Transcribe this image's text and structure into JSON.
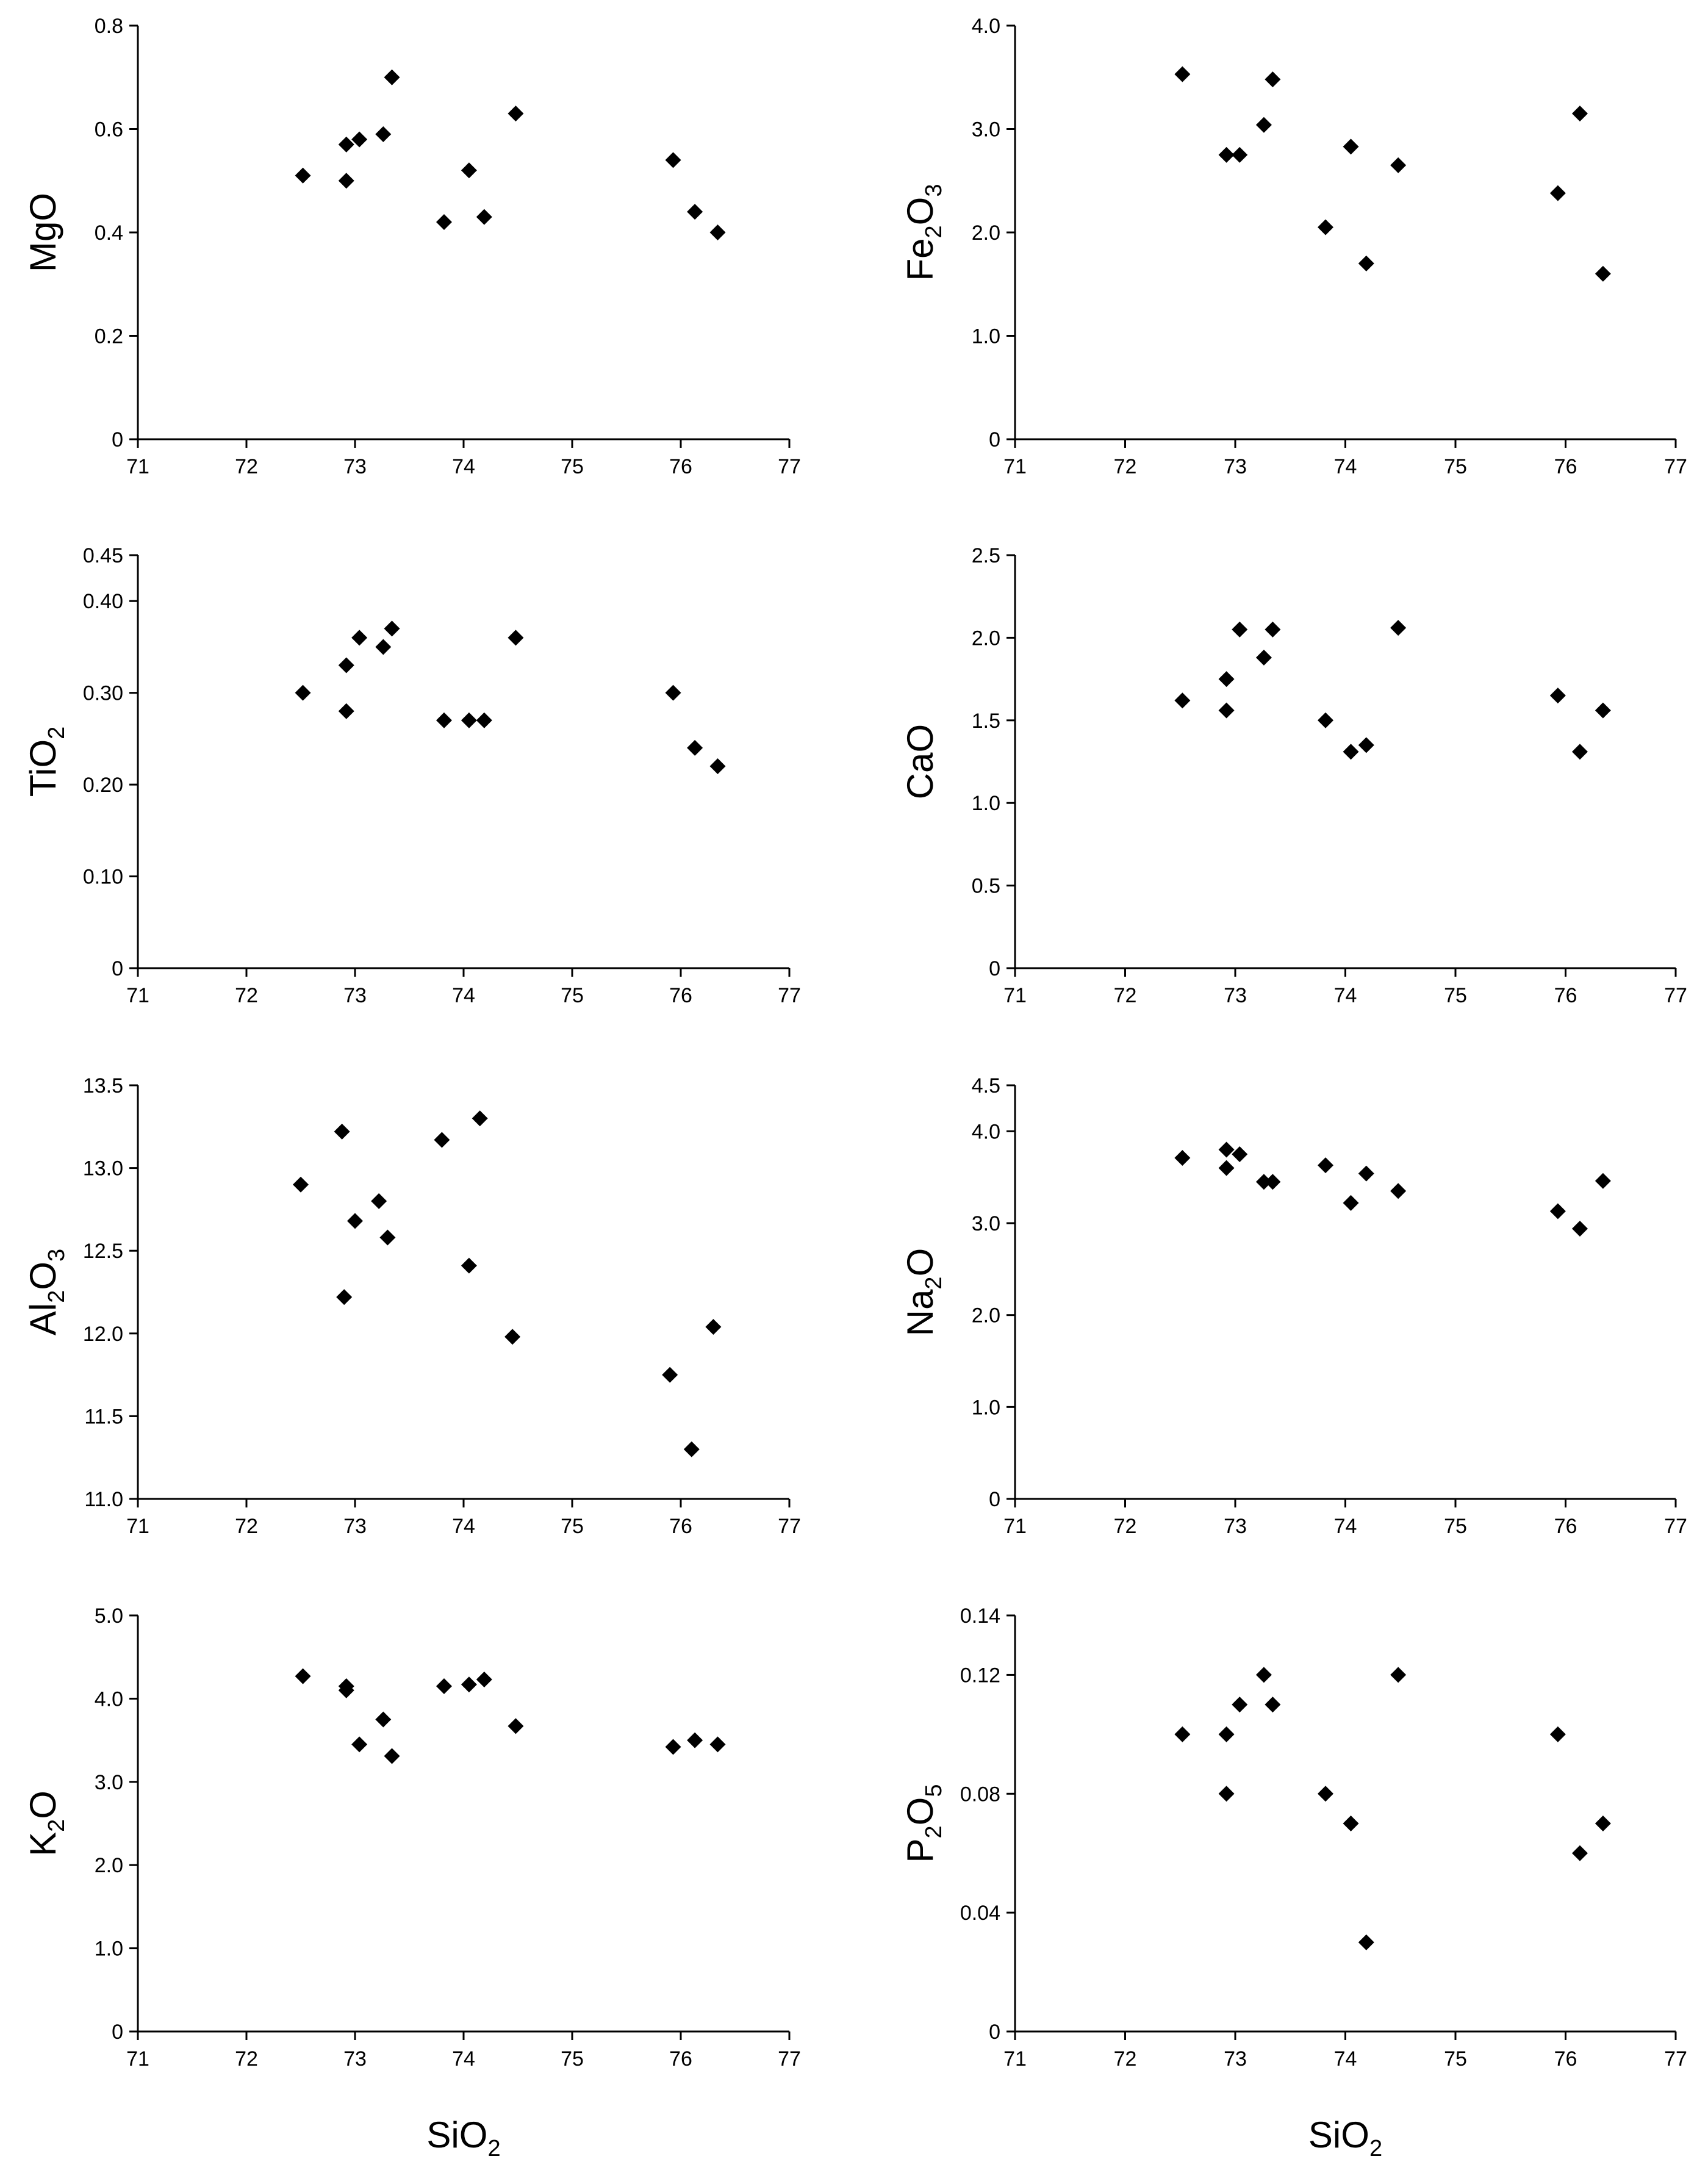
{
  "chart_data": [
    {
      "type": "scatter",
      "ylabel": {
        "parts": [
          {
            "t": "MgO"
          }
        ]
      },
      "xlim": [
        71,
        77
      ],
      "xticks": [
        "71",
        "72",
        "73",
        "74",
        "75",
        "76",
        "77"
      ],
      "ylim": [
        0,
        0.8
      ],
      "yticks": [
        {
          "v": 0,
          "l": "0"
        },
        {
          "v": 0.2,
          "l": "0.2"
        },
        {
          "v": 0.4,
          "l": "0.4"
        },
        {
          "v": 0.6,
          "l": "0.6"
        },
        {
          "v": 0.8,
          "l": "0.8"
        }
      ],
      "points": [
        [
          72.52,
          0.51
        ],
        [
          72.92,
          0.57
        ],
        [
          72.92,
          0.5
        ],
        [
          73.04,
          0.58
        ],
        [
          73.26,
          0.59
        ],
        [
          73.34,
          0.7
        ],
        [
          73.82,
          0.42
        ],
        [
          74.05,
          0.52
        ],
        [
          74.19,
          0.43
        ],
        [
          74.48,
          0.63
        ],
        [
          75.93,
          0.54
        ],
        [
          76.13,
          0.44
        ],
        [
          76.34,
          0.4
        ]
      ]
    },
    {
      "type": "scatter",
      "ylabel": {
        "parts": [
          {
            "t": "Fe"
          },
          {
            "t": "2",
            "sub": true
          },
          {
            "t": "O"
          },
          {
            "t": "3",
            "sub": true
          }
        ]
      },
      "xlim": [
        71,
        77
      ],
      "xticks": [
        "71",
        "72",
        "73",
        "74",
        "75",
        "76",
        "77"
      ],
      "ylim": [
        0,
        4.0
      ],
      "yticks": [
        {
          "v": 0,
          "l": "0"
        },
        {
          "v": 1,
          "l": "1.0"
        },
        {
          "v": 2,
          "l": "2.0"
        },
        {
          "v": 3,
          "l": "3.0"
        },
        {
          "v": 4,
          "l": "4.0"
        }
      ],
      "points": [
        [
          72.52,
          3.53
        ],
        [
          72.92,
          2.75
        ],
        [
          73.04,
          2.75
        ],
        [
          73.26,
          3.04
        ],
        [
          73.34,
          3.48
        ],
        [
          73.82,
          2.05
        ],
        [
          74.05,
          2.83
        ],
        [
          74.19,
          1.7
        ],
        [
          74.48,
          2.65
        ],
        [
          75.93,
          2.38
        ],
        [
          76.13,
          3.15
        ],
        [
          76.34,
          1.6
        ]
      ]
    },
    {
      "type": "scatter",
      "ylabel": {
        "parts": [
          {
            "t": "TiO"
          },
          {
            "t": "2",
            "sub": true
          }
        ]
      },
      "xlim": [
        71,
        77
      ],
      "xticks": [
        "71",
        "72",
        "73",
        "74",
        "75",
        "76",
        "77"
      ],
      "ylim": [
        0,
        0.45
      ],
      "yticks": [
        {
          "v": 0,
          "l": "0"
        },
        {
          "v": 0.1,
          "l": "0.10"
        },
        {
          "v": 0.2,
          "l": "0.20"
        },
        {
          "v": 0.3,
          "l": "0.30"
        },
        {
          "v": 0.4,
          "l": "0.40"
        },
        {
          "v": 0.45,
          "l": "0.45"
        }
      ],
      "points": [
        [
          72.52,
          0.3
        ],
        [
          72.92,
          0.33
        ],
        [
          72.92,
          0.28
        ],
        [
          73.04,
          0.36
        ],
        [
          73.26,
          0.35
        ],
        [
          73.34,
          0.37
        ],
        [
          73.82,
          0.27
        ],
        [
          74.05,
          0.27
        ],
        [
          74.19,
          0.27
        ],
        [
          74.48,
          0.36
        ],
        [
          75.93,
          0.3
        ],
        [
          76.13,
          0.24
        ],
        [
          76.34,
          0.22
        ]
      ]
    },
    {
      "type": "scatter",
      "ylabel": {
        "parts": [
          {
            "t": "CaO"
          }
        ]
      },
      "xlim": [
        71,
        77
      ],
      "xticks": [
        "71",
        "72",
        "73",
        "74",
        "75",
        "76",
        "77"
      ],
      "ylim": [
        0,
        2.5
      ],
      "yticks": [
        {
          "v": 0,
          "l": "0"
        },
        {
          "v": 0.5,
          "l": "0.5"
        },
        {
          "v": 1.0,
          "l": "1.0"
        },
        {
          "v": 1.5,
          "l": "1.5"
        },
        {
          "v": 2.0,
          "l": "2.0"
        },
        {
          "v": 2.5,
          "l": "2.5"
        }
      ],
      "points": [
        [
          72.52,
          1.62
        ],
        [
          72.92,
          1.75
        ],
        [
          72.92,
          1.56
        ],
        [
          73.04,
          2.05
        ],
        [
          73.26,
          1.88
        ],
        [
          73.34,
          2.05
        ],
        [
          73.82,
          1.5
        ],
        [
          74.05,
          1.31
        ],
        [
          74.19,
          1.35
        ],
        [
          74.48,
          2.06
        ],
        [
          75.93,
          1.65
        ],
        [
          76.13,
          1.31
        ],
        [
          76.34,
          1.56
        ]
      ]
    },
    {
      "type": "scatter",
      "ylabel": {
        "parts": [
          {
            "t": "Al"
          },
          {
            "t": "2",
            "sub": true
          },
          {
            "t": "O"
          },
          {
            "t": "3",
            "sub": true
          }
        ]
      },
      "xlim": [
        71,
        77
      ],
      "xticks": [
        "71",
        "72",
        "73",
        "74",
        "75",
        "76",
        "77"
      ],
      "ylim": [
        11.0,
        13.5
      ],
      "yticks": [
        {
          "v": 11.0,
          "l": "11.0"
        },
        {
          "v": 11.5,
          "l": "11.5"
        },
        {
          "v": 12.0,
          "l": "12.0"
        },
        {
          "v": 12.5,
          "l": "12.5"
        },
        {
          "v": 13.0,
          "l": "13.0"
        },
        {
          "v": 13.5,
          "l": "13.5"
        }
      ],
      "points": [
        [
          72.5,
          12.9
        ],
        [
          72.88,
          13.22
        ],
        [
          72.9,
          12.22
        ],
        [
          73.0,
          12.68
        ],
        [
          73.22,
          12.8
        ],
        [
          73.3,
          12.58
        ],
        [
          73.8,
          13.17
        ],
        [
          74.05,
          12.41
        ],
        [
          74.15,
          13.3
        ],
        [
          74.45,
          11.98
        ],
        [
          75.9,
          11.75
        ],
        [
          76.1,
          11.3
        ],
        [
          76.3,
          12.04
        ]
      ]
    },
    {
      "type": "scatter",
      "ylabel": {
        "parts": [
          {
            "t": "Na"
          },
          {
            "t": "2",
            "sub": true
          },
          {
            "t": "O"
          }
        ]
      },
      "xlim": [
        71,
        77
      ],
      "xticks": [
        "71",
        "72",
        "73",
        "74",
        "75",
        "76",
        "77"
      ],
      "ylim": [
        0,
        4.5
      ],
      "yticks": [
        {
          "v": 0,
          "l": "0"
        },
        {
          "v": 1,
          "l": "1.0"
        },
        {
          "v": 2,
          "l": "2.0"
        },
        {
          "v": 3,
          "l": "3.0"
        },
        {
          "v": 4,
          "l": "4.0"
        },
        {
          "v": 4.5,
          "l": "4.5"
        }
      ],
      "points": [
        [
          72.52,
          3.71
        ],
        [
          72.92,
          3.8
        ],
        [
          72.92,
          3.6
        ],
        [
          73.04,
          3.75
        ],
        [
          73.26,
          3.45
        ],
        [
          73.34,
          3.45
        ],
        [
          73.82,
          3.63
        ],
        [
          74.05,
          3.22
        ],
        [
          74.19,
          3.54
        ],
        [
          74.48,
          3.35
        ],
        [
          75.93,
          3.13
        ],
        [
          76.13,
          2.94
        ],
        [
          76.34,
          3.46
        ]
      ]
    },
    {
      "type": "scatter",
      "ylabel": {
        "parts": [
          {
            "t": "K"
          },
          {
            "t": "2",
            "sub": true
          },
          {
            "t": "O"
          }
        ]
      },
      "xlabel": {
        "parts": [
          {
            "t": "SiO"
          },
          {
            "t": "2",
            "sub": true
          }
        ]
      },
      "xlim": [
        71,
        77
      ],
      "xticks": [
        "71",
        "72",
        "73",
        "74",
        "75",
        "76",
        "77"
      ],
      "ylim": [
        0,
        5.0
      ],
      "yticks": [
        {
          "v": 0,
          "l": "0"
        },
        {
          "v": 1,
          "l": "1.0"
        },
        {
          "v": 2,
          "l": "2.0"
        },
        {
          "v": 3,
          "l": "3.0"
        },
        {
          "v": 4,
          "l": "4.0"
        },
        {
          "v": 5,
          "l": "5.0"
        }
      ],
      "points": [
        [
          72.52,
          4.27
        ],
        [
          72.92,
          4.15
        ],
        [
          72.92,
          4.1
        ],
        [
          73.04,
          3.45
        ],
        [
          73.26,
          3.75
        ],
        [
          73.34,
          3.31
        ],
        [
          73.82,
          4.15
        ],
        [
          74.05,
          4.17
        ],
        [
          74.19,
          4.23
        ],
        [
          74.48,
          3.67
        ],
        [
          75.93,
          3.42
        ],
        [
          76.13,
          3.5
        ],
        [
          76.34,
          3.45
        ]
      ]
    },
    {
      "type": "scatter",
      "ylabel": {
        "parts": [
          {
            "t": "P"
          },
          {
            "t": "2",
            "sub": true
          },
          {
            "t": "O"
          },
          {
            "t": "5",
            "sub": true
          }
        ]
      },
      "xlabel": {
        "parts": [
          {
            "t": "SiO"
          },
          {
            "t": "2",
            "sub": true
          }
        ]
      },
      "xlim": [
        71,
        77
      ],
      "xticks": [
        "71",
        "72",
        "73",
        "74",
        "75",
        "76",
        "77"
      ],
      "ylim": [
        0,
        0.14
      ],
      "yticks": [
        {
          "v": 0,
          "l": "0"
        },
        {
          "v": 0.04,
          "l": "0.04"
        },
        {
          "v": 0.08,
          "l": "0.08"
        },
        {
          "v": 0.12,
          "l": "0.12"
        },
        {
          "v": 0.14,
          "l": "0.14"
        }
      ],
      "points": [
        [
          72.52,
          0.1
        ],
        [
          72.92,
          0.1
        ],
        [
          72.92,
          0.08
        ],
        [
          73.04,
          0.11
        ],
        [
          73.26,
          0.12
        ],
        [
          73.34,
          0.11
        ],
        [
          73.82,
          0.08
        ],
        [
          74.05,
          0.07
        ],
        [
          74.19,
          0.03
        ],
        [
          74.48,
          0.12
        ],
        [
          75.93,
          0.1
        ],
        [
          76.13,
          0.06
        ],
        [
          76.34,
          0.07
        ]
      ]
    }
  ]
}
